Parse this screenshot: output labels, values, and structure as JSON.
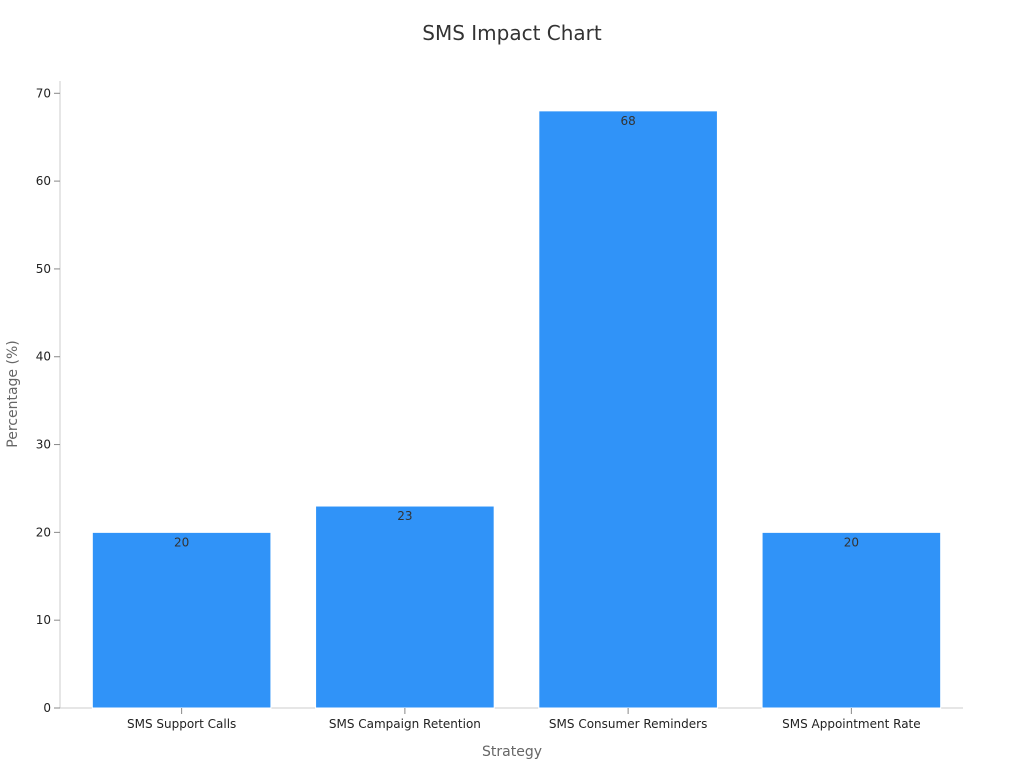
{
  "chart_data": {
    "type": "bar",
    "title": "SMS Impact Chart",
    "xlabel": "Strategy",
    "ylabel": "Percentage (%)",
    "categories": [
      "SMS Support Calls",
      "SMS Campaign Retention",
      "SMS Consumer Reminders",
      "SMS Appointment Rate"
    ],
    "values": [
      20,
      23,
      68,
      20
    ],
    "ylim": [
      0,
      71.4
    ],
    "yticks": [
      0,
      10,
      20,
      30,
      40,
      50,
      60,
      70
    ],
    "bar_color": "#3093f8",
    "grid": false,
    "legend": "none"
  }
}
